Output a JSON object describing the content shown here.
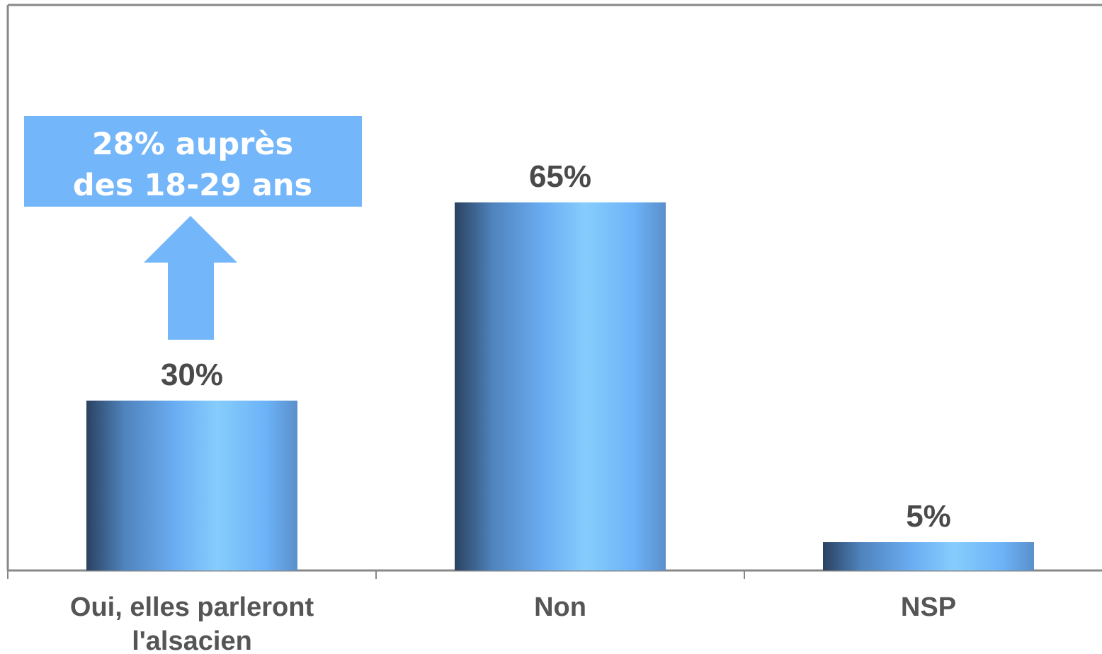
{
  "chart_data": {
    "type": "bar",
    "categories": [
      "Oui, elles parleront l'alsacien",
      "Non",
      "NSP"
    ],
    "category_lines": [
      [
        "Oui, elles parleront",
        "l'alsacien"
      ],
      [
        "Non"
      ],
      [
        "NSP"
      ]
    ],
    "values": [
      30,
      65,
      5
    ],
    "value_labels": [
      "30%",
      "65%",
      "5%"
    ],
    "ylim": [
      0,
      100
    ],
    "grid": false,
    "legend": "none",
    "title": "",
    "xlabel": "",
    "ylabel": "",
    "annotation": {
      "lines": [
        "28% auprès",
        "des 18-29 ans"
      ],
      "points_to_category": 0,
      "color": "#74b6fa"
    },
    "colors": {
      "bar_dark": "#2a4260",
      "bar_mid": "#6aadf2",
      "bar_light": "#86cdfd",
      "axis": "#888888",
      "value_text": "#4a4a4a",
      "category_text": "#555555"
    }
  }
}
